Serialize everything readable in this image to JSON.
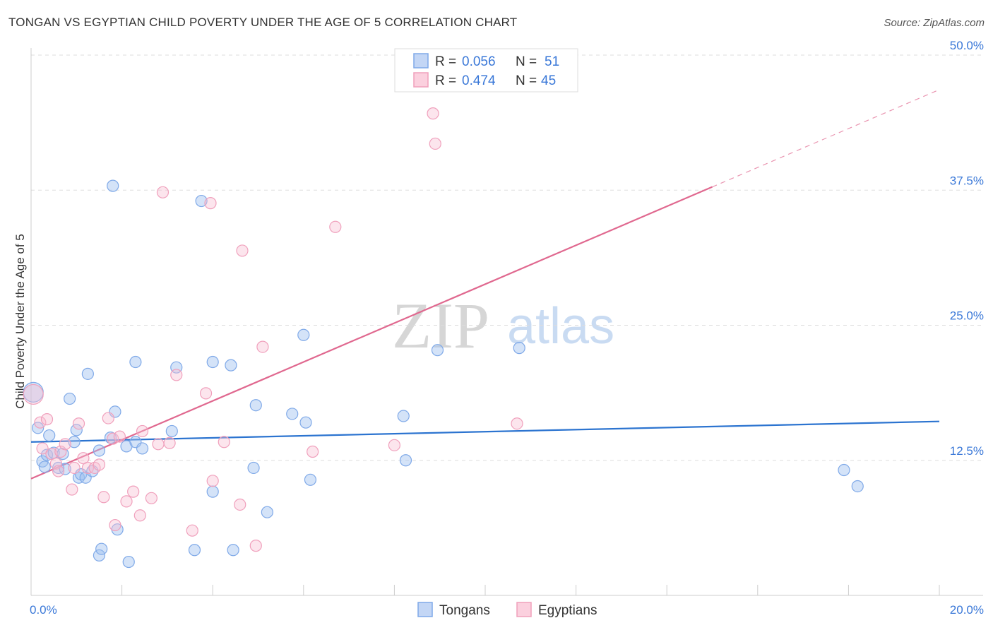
{
  "header": {
    "title": "TONGAN VS EGYPTIAN CHILD POVERTY UNDER THE AGE OF 5 CORRELATION CHART",
    "source": "Source: ZipAtlas.com"
  },
  "watermark": {
    "zip": "ZIP",
    "atlas": "atlas"
  },
  "legend_top": {
    "rows": [
      {
        "r_label": "R =",
        "r_value": "0.056",
        "n_label": "N =",
        "n_value": "51"
      },
      {
        "r_label": "R =",
        "r_value": "0.474",
        "n_label": "N =",
        "n_value": "45"
      }
    ]
  },
  "chart_data": {
    "type": "scatter",
    "title": "TONGAN VS EGYPTIAN CHILD POVERTY UNDER THE AGE OF 5 CORRELATION CHART",
    "xlabel": "",
    "ylabel": "Child Poverty Under the Age of 5",
    "xlim": [
      0,
      20
    ],
    "ylim": [
      0,
      50
    ],
    "x_tick_labels": [
      {
        "value": 0,
        "label": "0.0%"
      },
      {
        "value": 20,
        "label": "20.0%"
      }
    ],
    "y_tick_labels": [
      {
        "value": 12.5,
        "label": "12.5%"
      },
      {
        "value": 25,
        "label": "25.0%"
      },
      {
        "value": 37.5,
        "label": "37.5%"
      },
      {
        "value": 50,
        "label": "50.0%"
      }
    ],
    "colors": {
      "Tongans": "#7fa9e8",
      "Tongans_line": "#2c74d0",
      "Egyptians": "#f0a0bc",
      "Egyptians_line": "#e0688f",
      "accent_text": "#3a78d8"
    },
    "series": [
      {
        "name": "Tongans",
        "r": 0.056,
        "n": 51,
        "trend": {
          "x": [
            0,
            20
          ],
          "y": [
            14.2,
            16.1
          ]
        },
        "points": [
          {
            "x": 0.05,
            "y": 18.8,
            "big": true
          },
          {
            "x": 0.15,
            "y": 15.5
          },
          {
            "x": 0.25,
            "y": 12.4
          },
          {
            "x": 0.35,
            "y": 13.0
          },
          {
            "x": 0.4,
            "y": 14.8
          },
          {
            "x": 0.5,
            "y": 13.2
          },
          {
            "x": 0.6,
            "y": 11.8
          },
          {
            "x": 0.7,
            "y": 13.1
          },
          {
            "x": 0.75,
            "y": 11.7
          },
          {
            "x": 0.85,
            "y": 18.2
          },
          {
            "x": 0.95,
            "y": 14.2
          },
          {
            "x": 1.0,
            "y": 15.3
          },
          {
            "x": 1.05,
            "y": 10.9
          },
          {
            "x": 1.1,
            "y": 11.2
          },
          {
            "x": 1.2,
            "y": 10.9
          },
          {
            "x": 1.25,
            "y": 20.5
          },
          {
            "x": 1.35,
            "y": 11.5
          },
          {
            "x": 1.5,
            "y": 13.4
          },
          {
            "x": 1.75,
            "y": 14.6
          },
          {
            "x": 1.85,
            "y": 17.0
          },
          {
            "x": 2.1,
            "y": 13.8
          },
          {
            "x": 2.3,
            "y": 14.2
          },
          {
            "x": 2.3,
            "y": 21.6
          },
          {
            "x": 2.45,
            "y": 13.6
          },
          {
            "x": 1.9,
            "y": 6.1
          },
          {
            "x": 1.5,
            "y": 3.7
          },
          {
            "x": 1.55,
            "y": 4.3
          },
          {
            "x": 2.15,
            "y": 3.1
          },
          {
            "x": 1.8,
            "y": 37.9
          },
          {
            "x": 3.2,
            "y": 21.1
          },
          {
            "x": 3.1,
            "y": 15.2
          },
          {
            "x": 3.75,
            "y": 36.5
          },
          {
            "x": 3.6,
            "y": 4.2
          },
          {
            "x": 4.0,
            "y": 9.6
          },
          {
            "x": 4.0,
            "y": 21.6
          },
          {
            "x": 4.4,
            "y": 21.3
          },
          {
            "x": 4.45,
            "y": 4.2
          },
          {
            "x": 4.9,
            "y": 11.8
          },
          {
            "x": 4.95,
            "y": 17.6
          },
          {
            "x": 5.2,
            "y": 7.7
          },
          {
            "x": 5.75,
            "y": 16.8
          },
          {
            "x": 6.0,
            "y": 24.1
          },
          {
            "x": 6.05,
            "y": 16.0
          },
          {
            "x": 6.15,
            "y": 10.7
          },
          {
            "x": 8.2,
            "y": 16.6
          },
          {
            "x": 8.25,
            "y": 12.5
          },
          {
            "x": 8.95,
            "y": 22.7
          },
          {
            "x": 10.75,
            "y": 22.9
          },
          {
            "x": 17.9,
            "y": 11.6
          },
          {
            "x": 18.2,
            "y": 10.1
          },
          {
            "x": 0.3,
            "y": 11.9
          }
        ]
      },
      {
        "name": "Egyptians",
        "r": 0.474,
        "n": 45,
        "trend": {
          "x": [
            0,
            15.0
          ],
          "y": [
            10.8,
            37.8
          ],
          "dashed_to": {
            "x": 20,
            "y": 46.8
          }
        },
        "points": [
          {
            "x": 0.05,
            "y": 18.6,
            "big": true
          },
          {
            "x": 0.2,
            "y": 16.0
          },
          {
            "x": 0.25,
            "y": 13.6
          },
          {
            "x": 0.35,
            "y": 16.3
          },
          {
            "x": 0.45,
            "y": 13.1
          },
          {
            "x": 0.55,
            "y": 12.2
          },
          {
            "x": 0.6,
            "y": 11.5
          },
          {
            "x": 0.65,
            "y": 13.3
          },
          {
            "x": 0.75,
            "y": 14.0
          },
          {
            "x": 0.9,
            "y": 9.8
          },
          {
            "x": 1.05,
            "y": 15.9
          },
          {
            "x": 1.15,
            "y": 12.7
          },
          {
            "x": 1.25,
            "y": 11.8
          },
          {
            "x": 1.4,
            "y": 11.8
          },
          {
            "x": 1.5,
            "y": 12.1
          },
          {
            "x": 1.6,
            "y": 9.1
          },
          {
            "x": 1.7,
            "y": 16.4
          },
          {
            "x": 1.8,
            "y": 14.5
          },
          {
            "x": 1.85,
            "y": 6.5
          },
          {
            "x": 1.95,
            "y": 14.7
          },
          {
            "x": 2.1,
            "y": 8.7
          },
          {
            "x": 2.25,
            "y": 9.6
          },
          {
            "x": 2.4,
            "y": 7.4
          },
          {
            "x": 2.45,
            "y": 15.2
          },
          {
            "x": 2.65,
            "y": 9.0
          },
          {
            "x": 2.8,
            "y": 14.0
          },
          {
            "x": 2.9,
            "y": 37.3
          },
          {
            "x": 3.05,
            "y": 14.1
          },
          {
            "x": 3.2,
            "y": 20.4
          },
          {
            "x": 3.55,
            "y": 6.0
          },
          {
            "x": 3.85,
            "y": 18.7
          },
          {
            "x": 3.95,
            "y": 36.3
          },
          {
            "x": 4.0,
            "y": 10.6
          },
          {
            "x": 4.25,
            "y": 14.2
          },
          {
            "x": 4.6,
            "y": 8.4
          },
          {
            "x": 4.65,
            "y": 31.9
          },
          {
            "x": 4.95,
            "y": 4.6
          },
          {
            "x": 5.1,
            "y": 23.0
          },
          {
            "x": 6.2,
            "y": 13.3
          },
          {
            "x": 6.7,
            "y": 34.1
          },
          {
            "x": 8.0,
            "y": 13.9
          },
          {
            "x": 8.85,
            "y": 44.6
          },
          {
            "x": 8.9,
            "y": 41.8
          },
          {
            "x": 10.7,
            "y": 15.9
          },
          {
            "x": 0.95,
            "y": 11.8
          }
        ]
      }
    ]
  },
  "legend_bottom": {
    "items": [
      {
        "label": "Tongans"
      },
      {
        "label": "Egyptians"
      }
    ]
  }
}
